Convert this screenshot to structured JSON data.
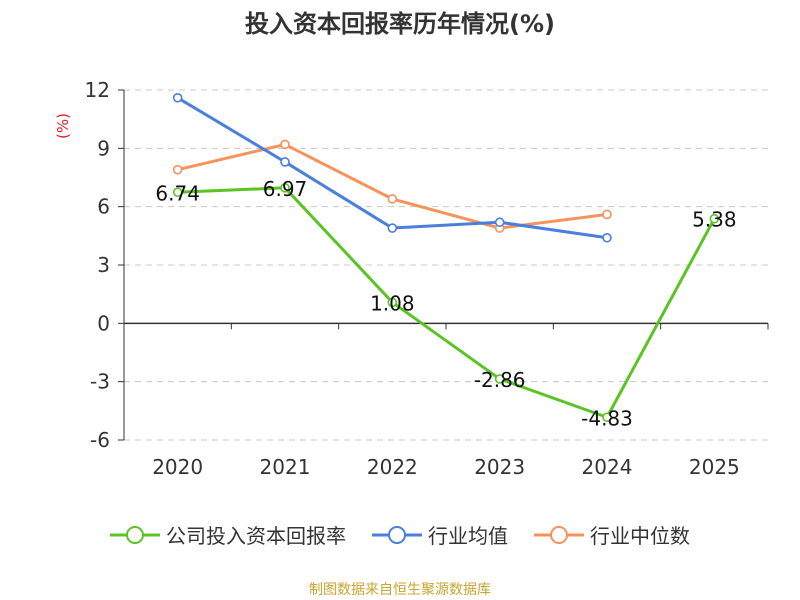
{
  "chart_data": {
    "type": "line",
    "title": "投入资本回报率历年情况(%)",
    "ylabel": "(%)",
    "xlabel": "",
    "categories": [
      "2020",
      "2021",
      "2022",
      "2023",
      "2024",
      "2025"
    ],
    "ylim": [
      -6,
      12
    ],
    "yticks": [
      12,
      9,
      6,
      3,
      0,
      -3,
      -6
    ],
    "grid": true,
    "legend_position": "bottom",
    "series": [
      {
        "name": "公司投入资本回报率",
        "color": "#5bc424",
        "values": [
          6.74,
          6.97,
          1.08,
          -2.86,
          -4.83,
          5.38
        ],
        "labels": [
          "6.74",
          "6.97",
          "1.08",
          "-2.86",
          "-4.83",
          "5.38"
        ]
      },
      {
        "name": "行业均值",
        "color": "#4a7fdc",
        "values": [
          11.6,
          8.3,
          4.9,
          5.2,
          4.4,
          null
        ]
      },
      {
        "name": "行业中位数",
        "color": "#f7925a",
        "values": [
          7.9,
          9.2,
          6.4,
          4.9,
          5.6,
          null
        ]
      }
    ]
  },
  "footer": {
    "source": "制图数据来自恒生聚源数据库"
  }
}
